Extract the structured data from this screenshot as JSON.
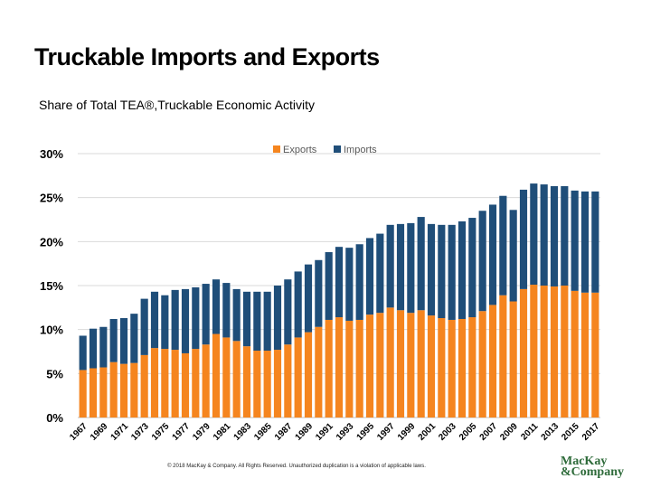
{
  "title": "Truckable Imports and Exports",
  "subtitle": "Share of Total TEA®,Truckable Economic Activity",
  "footer": "© 2018 MacKay & Company.  All Rights Reserved.  Unauthorized duplication is a violation of applicable laws.",
  "logo": {
    "line1": "MacKay",
    "line2": "&Company"
  },
  "colors": {
    "exports": "#f5851f",
    "imports": "#1f4e79"
  },
  "chart_data": {
    "type": "bar",
    "stacked": true,
    "title": "Truckable Imports and Exports",
    "subtitle": "Share of Total TEA®,Truckable Economic Activity",
    "xlabel": "",
    "ylabel": "",
    "ylim": [
      0,
      30
    ],
    "yticks": [
      "0%",
      "5%",
      "10%",
      "15%",
      "20%",
      "25%",
      "30%"
    ],
    "legend_position": "top-center",
    "categories": [
      "1967",
      "1968",
      "1969",
      "1970",
      "1971",
      "1972",
      "1973",
      "1974",
      "1975",
      "1976",
      "1977",
      "1978",
      "1979",
      "1980",
      "1981",
      "1982",
      "1983",
      "1984",
      "1985",
      "1986",
      "1987",
      "1988",
      "1989",
      "1990",
      "1991",
      "1992",
      "1993",
      "1994",
      "1995",
      "1996",
      "1997",
      "1998",
      "1999",
      "2000",
      "2001",
      "2002",
      "2003",
      "2004",
      "2005",
      "2006",
      "2007",
      "2008",
      "2009",
      "2010",
      "2011",
      "2012",
      "2013",
      "2014",
      "2015",
      "2016",
      "2017"
    ],
    "xtick_labels": [
      "1967",
      "1969",
      "1971",
      "1973",
      "1975",
      "1977",
      "1979",
      "1981",
      "1983",
      "1985",
      "1987",
      "1989",
      "1991",
      "1993",
      "1995",
      "1997",
      "1999",
      "2001",
      "2003",
      "2005",
      "2007",
      "2009",
      "2011",
      "2013",
      "2015",
      "2017"
    ],
    "series": [
      {
        "name": "Exports",
        "values": [
          5.4,
          5.6,
          5.7,
          6.3,
          6.1,
          6.2,
          7.1,
          7.9,
          7.8,
          7.7,
          7.3,
          7.8,
          8.3,
          9.5,
          9.1,
          8.7,
          8.1,
          7.6,
          7.6,
          7.7,
          8.3,
          9.1,
          9.7,
          10.3,
          11.1,
          11.4,
          11.0,
          11.1,
          11.7,
          11.9,
          12.5,
          12.2,
          11.9,
          12.2,
          11.6,
          11.3,
          11.1,
          11.2,
          11.4,
          12.1,
          12.8,
          13.9,
          13.2,
          14.6,
          15.1,
          15.0,
          14.9,
          15.0,
          14.4,
          14.2,
          14.2
        ]
      },
      {
        "name": "Imports",
        "values": [
          3.9,
          4.5,
          4.6,
          4.9,
          5.2,
          5.6,
          6.4,
          6.4,
          6.1,
          6.8,
          7.3,
          7.0,
          6.9,
          6.2,
          6.2,
          5.9,
          6.2,
          6.7,
          6.7,
          7.3,
          7.4,
          7.5,
          7.7,
          7.6,
          7.7,
          8.0,
          8.3,
          8.6,
          8.7,
          9.0,
          9.4,
          9.8,
          10.2,
          10.6,
          10.4,
          10.6,
          10.8,
          11.1,
          11.3,
          11.4,
          11.4,
          11.3,
          10.4,
          11.3,
          11.5,
          11.5,
          11.4,
          11.3,
          11.4,
          11.5,
          11.5
        ]
      }
    ]
  }
}
